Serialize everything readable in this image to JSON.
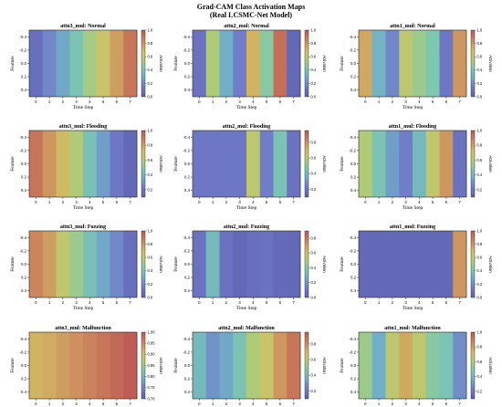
{
  "figure": {
    "title_line1": "Grad-CAM Class Activation Maps",
    "title_line2": "(Real LCSMC-Net Model)"
  },
  "chart_data": [
    {
      "type": "heatmap",
      "title": "attn3_mul: Normal",
      "xlabel": "Time Step",
      "ylabel": "Feature",
      "x": [
        0,
        1,
        2,
        3,
        4,
        5,
        6,
        7
      ],
      "y_ticks": [
        -0.4,
        -0.2,
        0.0,
        0.2,
        0.4
      ],
      "values": [
        0.08,
        0.18,
        0.28,
        0.4,
        0.52,
        0.65,
        0.78,
        0.9
      ],
      "colorbar": {
        "label": "Activation",
        "ticks": [
          0.0,
          0.2,
          0.4,
          0.6,
          0.8,
          1.0
        ],
        "range": [
          0.0,
          1.0
        ]
      }
    },
    {
      "type": "heatmap",
      "title": "attn2_mul: Normal",
      "xlabel": "Time Step",
      "ylabel": "Feature",
      "x": [
        0,
        1,
        2,
        3,
        4,
        5,
        6,
        7
      ],
      "y_ticks": [
        -0.4,
        -0.2,
        0.0,
        0.2,
        0.4
      ],
      "values": [
        0.1,
        0.55,
        0.3,
        0.15,
        0.72,
        0.45,
        0.92,
        0.05
      ],
      "colorbar": {
        "label": "Activation",
        "ticks": [
          0.0,
          0.2,
          0.4,
          0.6,
          0.8,
          1.0
        ],
        "range": [
          0.0,
          1.0
        ]
      }
    },
    {
      "type": "heatmap",
      "title": "attn1_mul: Normal",
      "xlabel": "Time Step",
      "ylabel": "Feature",
      "x": [
        0,
        1,
        2,
        3,
        4,
        5,
        6,
        7
      ],
      "y_ticks": [
        -0.4,
        -0.2,
        0.0,
        0.2,
        0.4
      ],
      "values": [
        0.75,
        0.32,
        0.18,
        0.6,
        0.5,
        0.42,
        0.12,
        0.8
      ],
      "colorbar": {
        "label": "Activation",
        "ticks": [
          0.0,
          0.2,
          0.4,
          0.6,
          0.8,
          1.0
        ],
        "range": [
          0.0,
          1.0
        ]
      }
    },
    {
      "type": "heatmap",
      "title": "attn3_mul: Flooding",
      "xlabel": "Time Step",
      "ylabel": "Feature",
      "x": [
        0,
        1,
        2,
        3,
        4,
        5,
        6,
        7
      ],
      "y_ticks": [
        -0.4,
        -0.2,
        0.0,
        0.2,
        0.4
      ],
      "values": [
        0.9,
        0.8,
        0.7,
        0.55,
        0.38,
        0.25,
        0.12,
        0.05
      ],
      "colorbar": {
        "label": "Activation",
        "ticks": [
          0.2,
          0.4,
          0.6,
          0.8,
          1.0
        ],
        "range": [
          0.1,
          1.0
        ]
      }
    },
    {
      "type": "heatmap",
      "title": "attn2_mul: Flooding",
      "xlabel": "Time Step",
      "ylabel": "Feature",
      "x": [
        0,
        1,
        2,
        3,
        4,
        5,
        6,
        7
      ],
      "y_ticks": [
        -0.4,
        -0.2,
        0.0,
        0.2,
        0.4
      ],
      "values": [
        0.12,
        0.12,
        0.12,
        0.12,
        0.6,
        0.15,
        0.4,
        0.1
      ],
      "colorbar": {
        "label": "Activation",
        "ticks": [
          0.2,
          0.4,
          0.6,
          0.8
        ],
        "range": [
          0.1,
          0.95
        ]
      }
    },
    {
      "type": "heatmap",
      "title": "attn1_mul: Flooding",
      "xlabel": "Time Step",
      "ylabel": "Feature",
      "x": [
        0,
        1,
        2,
        3,
        4,
        5,
        6,
        7
      ],
      "y_ticks": [
        -0.4,
        -0.2,
        0.0,
        0.2,
        0.4
      ],
      "values": [
        0.55,
        0.4,
        0.25,
        0.15,
        0.35,
        0.62,
        0.8,
        0.1
      ],
      "colorbar": {
        "label": "Activation",
        "ticks": [
          0.2,
          0.4,
          0.6,
          0.8,
          1.0
        ],
        "range": [
          0.1,
          1.0
        ]
      }
    },
    {
      "type": "heatmap",
      "title": "attn3_mul: Fuzzing",
      "xlabel": "Time Step",
      "ylabel": "Feature",
      "x": [
        0,
        1,
        2,
        3,
        4,
        5,
        6,
        7
      ],
      "y_ticks": [
        -0.4,
        -0.2,
        0.0,
        0.2,
        0.4
      ],
      "values": [
        0.85,
        0.78,
        0.62,
        0.5,
        0.38,
        0.28,
        0.18,
        0.08
      ],
      "colorbar": {
        "label": "Activation",
        "ticks": [
          0.0,
          0.2,
          0.4,
          0.6,
          0.8,
          1.0
        ],
        "range": [
          0.0,
          1.0
        ]
      }
    },
    {
      "type": "heatmap",
      "title": "attn2_mul: Fuzzing",
      "xlabel": "Time Step",
      "ylabel": "Feature",
      "x": [
        0,
        1,
        2,
        3,
        4,
        5,
        6,
        7
      ],
      "y_ticks": [
        -0.4,
        -0.2,
        0.0,
        0.2,
        0.4
      ],
      "values": [
        0.1,
        0.35,
        0.1,
        0.05,
        0.08,
        0.1,
        0.06,
        0.05
      ],
      "colorbar": {
        "label": "Activation",
        "ticks": [
          0.0,
          0.2,
          0.4,
          0.6,
          0.8
        ],
        "range": [
          0.0,
          0.9
        ]
      }
    },
    {
      "type": "heatmap",
      "title": "attn1_mul: Fuzzing",
      "xlabel": "Time Step",
      "ylabel": "Feature",
      "x": [
        0,
        1,
        2,
        3,
        4,
        5,
        6,
        7
      ],
      "y_ticks": [
        -0.4,
        -0.2,
        0.0,
        0.2,
        0.4
      ],
      "values": [
        0.05,
        0.05,
        0.05,
        0.05,
        0.05,
        0.05,
        0.05,
        0.8
      ],
      "colorbar": {
        "label": "Activation",
        "ticks": [
          0.0,
          0.2,
          0.4,
          0.6,
          0.8,
          1.0
        ],
        "range": [
          0.0,
          1.0
        ]
      }
    },
    {
      "type": "heatmap",
      "title": "attn3_mul: Malfunction",
      "xlabel": "Time Step",
      "ylabel": "Feature",
      "x": [
        0,
        1,
        2,
        3,
        4,
        5,
        6,
        7
      ],
      "y_ticks": [
        -0.4,
        -0.2,
        0.0,
        0.2,
        0.4
      ],
      "values": [
        0.72,
        0.74,
        0.78,
        0.82,
        0.86,
        0.9,
        0.94,
        0.98
      ],
      "colorbar": {
        "label": "Activation",
        "ticks": [
          0.7,
          0.75,
          0.8,
          0.85,
          0.9,
          0.95,
          1.0
        ],
        "range": [
          0.7,
          1.0
        ]
      }
    },
    {
      "type": "heatmap",
      "title": "attn2_mul: Malfunction",
      "xlabel": "Time Step",
      "ylabel": "Feature",
      "x": [
        0,
        1,
        2,
        3,
        4,
        5,
        6,
        7
      ],
      "y_ticks": [
        -0.4,
        -0.2,
        0.0,
        0.2,
        0.4
      ],
      "values": [
        0.35,
        0.22,
        0.28,
        0.4,
        0.55,
        0.65,
        0.8,
        0.9
      ],
      "colorbar": {
        "label": "Activation",
        "ticks": [
          0.2,
          0.4,
          0.6,
          0.8
        ],
        "range": [
          0.1,
          0.95
        ]
      }
    },
    {
      "type": "heatmap",
      "title": "attn1_mul: Malfunction",
      "xlabel": "Time Step",
      "ylabel": "Feature",
      "x": [
        0,
        1,
        2,
        3,
        4,
        5,
        6,
        7
      ],
      "y_ticks": [
        -0.4,
        -0.2,
        0.0,
        0.2,
        0.4
      ],
      "values": [
        0.5,
        0.3,
        0.6,
        0.75,
        0.6,
        0.45,
        0.4,
        0.2
      ],
      "colorbar": {
        "label": "Activation",
        "ticks": [
          0.2,
          0.4,
          0.6,
          0.8,
          1.0
        ],
        "range": [
          0.1,
          1.0
        ]
      }
    }
  ]
}
